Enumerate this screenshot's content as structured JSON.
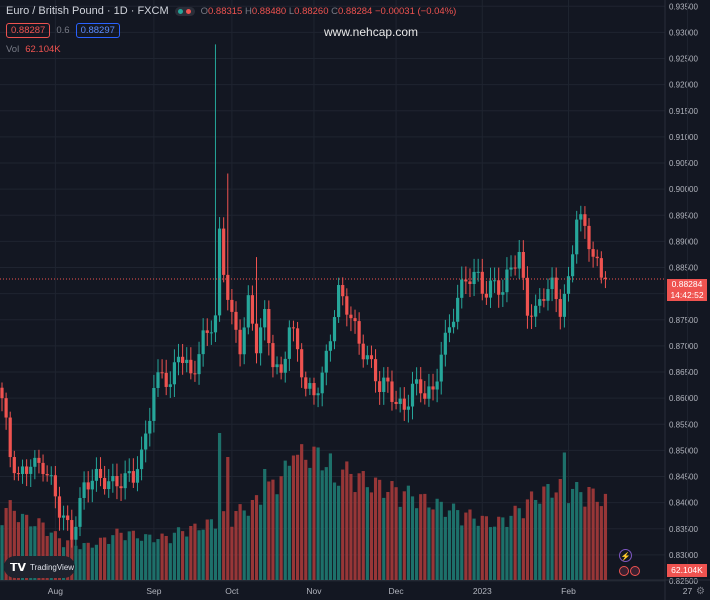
{
  "header": {
    "symbol": "Euro / British Pound · 1D · FXCM",
    "o_label": "O",
    "o": "0.88315",
    "h_label": "H",
    "h": "0.88480",
    "l_label": "L",
    "l": "0.88260",
    "c_label": "C",
    "c": "0.88284",
    "change": "−0.00031 (−0.04%)"
  },
  "trade": {
    "sell": "0.88287",
    "spread": "0.6",
    "buy": "0.88297"
  },
  "volume": {
    "label": "Vol",
    "value": "62.104K"
  },
  "watermark": "www.nehcap.com",
  "logo": "TradingView",
  "last_price": {
    "price": "0.88284",
    "countdown": "14:42:52"
  },
  "volume_badge": "62.104K",
  "colors": {
    "up": "#26a69a",
    "down": "#ef5350",
    "background": "#131722",
    "grid": "#1f2430",
    "text": "#b2b5be"
  },
  "icons": {
    "settings": "gear-icon",
    "events": "lightning-icon",
    "flags": "flag-icon"
  },
  "chart_data": {
    "type": "candlestick",
    "y_range": [
      0.8252,
      0.9362
    ],
    "y_ticks": [
      "0.93500",
      "0.93000",
      "0.92500",
      "0.92000",
      "0.91500",
      "0.91000",
      "0.90500",
      "0.90000",
      "0.89500",
      "0.89000",
      "0.88500",
      "0.88000",
      "0.87500",
      "0.87000",
      "0.86500",
      "0.86000",
      "0.85500",
      "0.85000",
      "0.84500",
      "0.84000",
      "0.83500",
      "0.83000",
      "0.82500"
    ],
    "x_labels": [
      {
        "label": "Aug",
        "index": 13
      },
      {
        "label": "Sep",
        "index": 37
      },
      {
        "label": "Oct",
        "index": 56
      },
      {
        "label": "Nov",
        "index": 76
      },
      {
        "label": "Dec",
        "index": 96
      },
      {
        "label": "2023",
        "index": 117
      },
      {
        "label": "Feb",
        "index": 138
      },
      {
        "label": "27",
        "index": 167
      }
    ],
    "anchors": [
      [
        0,
        0.86
      ],
      [
        2,
        0.848
      ],
      [
        4,
        0.844
      ],
      [
        7,
        0.849
      ],
      [
        10,
        0.847
      ],
      [
        14,
        0.838
      ],
      [
        17,
        0.835
      ],
      [
        20,
        0.843
      ],
      [
        24,
        0.844
      ],
      [
        28,
        0.845
      ],
      [
        32,
        0.844
      ],
      [
        34,
        0.848
      ],
      [
        37,
        0.863
      ],
      [
        39,
        0.866
      ],
      [
        41,
        0.861
      ],
      [
        43,
        0.868
      ],
      [
        46,
        0.865
      ],
      [
        49,
        0.872
      ],
      [
        52,
        0.874
      ],
      [
        53,
        0.89
      ],
      [
        54,
        0.884
      ],
      [
        56,
        0.876
      ],
      [
        58,
        0.871
      ],
      [
        60,
        0.878
      ],
      [
        62,
        0.869
      ],
      [
        64,
        0.875
      ],
      [
        66,
        0.868
      ],
      [
        68,
        0.865
      ],
      [
        70,
        0.874
      ],
      [
        72,
        0.868
      ],
      [
        74,
        0.861
      ],
      [
        76,
        0.862
      ],
      [
        78,
        0.865
      ],
      [
        80,
        0.872
      ],
      [
        82,
        0.879
      ],
      [
        84,
        0.877
      ],
      [
        86,
        0.874
      ],
      [
        88,
        0.87
      ],
      [
        90,
        0.866
      ],
      [
        92,
        0.861
      ],
      [
        94,
        0.862
      ],
      [
        96,
        0.86
      ],
      [
        98,
        0.859
      ],
      [
        100,
        0.862
      ],
      [
        103,
        0.86
      ],
      [
        105,
        0.861
      ],
      [
        107,
        0.87
      ],
      [
        110,
        0.876
      ],
      [
        113,
        0.882
      ],
      [
        116,
        0.884
      ],
      [
        118,
        0.881
      ],
      [
        120,
        0.882
      ],
      [
        122,
        0.879
      ],
      [
        124,
        0.885
      ],
      [
        126,
        0.888
      ],
      [
        128,
        0.878
      ],
      [
        130,
        0.876
      ],
      [
        132,
        0.879
      ],
      [
        134,
        0.881
      ],
      [
        136,
        0.878
      ],
      [
        138,
        0.883
      ],
      [
        140,
        0.895
      ],
      [
        142,
        0.891
      ],
      [
        144,
        0.887
      ],
      [
        146,
        0.884
      ],
      [
        147,
        0.8828
      ]
    ],
    "spikes": [
      [
        52,
        0.9277
      ],
      [
        55,
        0.903
      ],
      [
        62,
        0.887
      ]
    ],
    "volume": {
      "base": [
        0.43,
        0.47,
        0.4,
        0.37,
        0.36,
        0.31,
        0.26,
        0.24,
        0.22,
        0.22,
        0.24,
        0.27,
        0.3,
        0.3,
        0.28,
        0.27,
        0.27,
        0.27,
        0.3,
        0.32,
        0.33,
        0.35,
        0.37,
        0.4,
        0.42,
        0.45,
        0.48,
        0.53,
        0.6,
        0.67,
        0.73,
        0.79,
        0.8,
        0.78,
        0.74,
        0.71,
        0.68,
        0.65,
        0.62,
        0.6,
        0.58,
        0.57,
        0.55,
        0.53,
        0.5,
        0.48,
        0.46,
        0.44,
        0.42,
        0.4,
        0.38,
        0.36,
        0.38,
        0.42,
        0.47,
        0.52,
        0.55,
        0.58,
        0.59,
        0.58,
        0.56,
        0.54,
        0.52,
        0.5
      ],
      "spikes": [
        [
          53,
          0.98
        ],
        [
          55,
          0.82
        ],
        [
          64,
          0.74
        ],
        [
          71,
          0.83
        ],
        [
          81,
          0.65
        ],
        [
          137,
          0.85
        ],
        [
          143,
          0.62
        ]
      ]
    },
    "last_index": 147,
    "n_bars": 150
  }
}
